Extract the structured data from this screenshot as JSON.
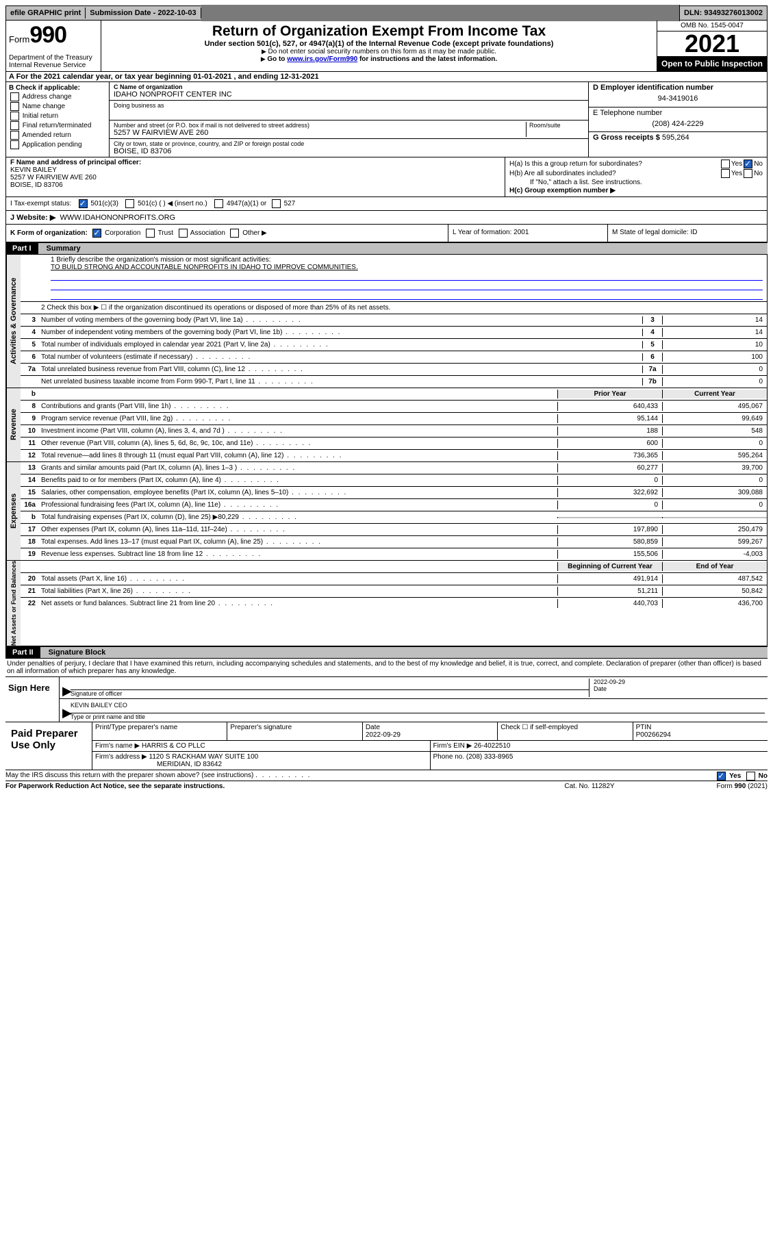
{
  "topbar": {
    "efile": "efile GRAPHIC print",
    "sub_label": "Submission Date - 2022-10-03",
    "dln": "DLN: 93493276013002"
  },
  "header": {
    "form_word": "Form",
    "form_num": "990",
    "dept": "Department of the Treasury",
    "irs": "Internal Revenue Service",
    "title": "Return of Organization Exempt From Income Tax",
    "sub1": "Under section 501(c), 527, or 4947(a)(1) of the Internal Revenue Code (except private foundations)",
    "sub2": "Do not enter social security numbers on this form as it may be made public.",
    "sub3_pre": "Go to ",
    "sub3_link": "www.irs.gov/Form990",
    "sub3_post": " for instructions and the latest information.",
    "omb": "OMB No. 1545-0047",
    "year": "2021",
    "open": "Open to Public Inspection"
  },
  "a": {
    "text": "A For the 2021 calendar year, or tax year beginning 01-01-2021   , and ending 12-31-2021"
  },
  "b": {
    "label": "B Check if applicable:",
    "items": [
      "Address change",
      "Name change",
      "Initial return",
      "Final return/terminated",
      "Amended return",
      "Application pending"
    ]
  },
  "c": {
    "name_lbl": "C Name of organization",
    "name": "IDAHO NONPROFIT CENTER INC",
    "dba_lbl": "Doing business as",
    "street_lbl": "Number and street (or P.O. box if mail is not delivered to street address)",
    "room_lbl": "Room/suite",
    "street": "5257 W FAIRVIEW AVE 260",
    "city_lbl": "City or town, state or province, country, and ZIP or foreign postal code",
    "city": "BOISE, ID  83706"
  },
  "d": {
    "label": "D Employer identification number",
    "val": "94-3419016"
  },
  "e": {
    "label": "E Telephone number",
    "val": "(208) 424-2229"
  },
  "g": {
    "label": "G Gross receipts $",
    "val": "595,264"
  },
  "f": {
    "label": "F  Name and address of principal officer:",
    "name": "KEVIN BAILEY",
    "addr1": "5257 W FAIRVIEW AVE 260",
    "addr2": "BOISE, ID  83706"
  },
  "h": {
    "a_label": "H(a)  Is this a group return for subordinates?",
    "a_yes": "Yes",
    "a_no": "No",
    "b_label": "H(b)  Are all subordinates included?",
    "b_note": "If \"No,\" attach a list. See instructions.",
    "c_label": "H(c)  Group exemption number ▶"
  },
  "i": {
    "label": "I   Tax-exempt status:",
    "opt1": "501(c)(3)",
    "opt2": "501(c) (  ) ◀ (insert no.)",
    "opt3": "4947(a)(1) or",
    "opt4": "527"
  },
  "j": {
    "label": "J   Website: ▶",
    "val": "WWW.IDAHONONPROFITS.ORG"
  },
  "k": {
    "label": "K Form of organization:",
    "opts": [
      "Corporation",
      "Trust",
      "Association",
      "Other ▶"
    ]
  },
  "l": {
    "label": "L Year of formation: 2001"
  },
  "m": {
    "label": "M State of legal domicile: ID"
  },
  "part1": {
    "label": "Part I",
    "name": "Summary",
    "q1": "1  Briefly describe the organization's mission or most significant activities:",
    "mission": "TO BUILD STRONG AND ACCOUNTABLE NONPROFITS IN IDAHO TO IMPROVE COMMUNITIES.",
    "q2": "2   Check this box ▶ ☐  if the organization discontinued its operations or disposed of more than 25% of its net assets."
  },
  "gov_rows": [
    {
      "n": "3",
      "d": "Number of voting members of the governing body (Part VI, line 1a)",
      "c": "3",
      "v": "14"
    },
    {
      "n": "4",
      "d": "Number of independent voting members of the governing body (Part VI, line 1b)",
      "c": "4",
      "v": "14"
    },
    {
      "n": "5",
      "d": "Total number of individuals employed in calendar year 2021 (Part V, line 2a)",
      "c": "5",
      "v": "10"
    },
    {
      "n": "6",
      "d": "Total number of volunteers (estimate if necessary)",
      "c": "6",
      "v": "100"
    },
    {
      "n": "7a",
      "d": "Total unrelated business revenue from Part VIII, column (C), line 12",
      "c": "7a",
      "v": "0"
    },
    {
      "n": "",
      "d": "Net unrelated business taxable income from Form 990-T, Part I, line 11",
      "c": "7b",
      "v": "0"
    }
  ],
  "col_hdr": {
    "b": "b",
    "prior": "Prior Year",
    "current": "Current Year",
    "boy": "Beginning of Current Year",
    "eoy": "End of Year"
  },
  "rev_rows": [
    {
      "n": "8",
      "d": "Contributions and grants (Part VIII, line 1h)",
      "p": "640,433",
      "c": "495,067"
    },
    {
      "n": "9",
      "d": "Program service revenue (Part VIII, line 2g)",
      "p": "95,144",
      "c": "99,649"
    },
    {
      "n": "10",
      "d": "Investment income (Part VIII, column (A), lines 3, 4, and 7d )",
      "p": "188",
      "c": "548"
    },
    {
      "n": "11",
      "d": "Other revenue (Part VIII, column (A), lines 5, 6d, 8c, 9c, 10c, and 11e)",
      "p": "600",
      "c": "0"
    },
    {
      "n": "12",
      "d": "Total revenue—add lines 8 through 11 (must equal Part VIII, column (A), line 12)",
      "p": "736,365",
      "c": "595,264"
    }
  ],
  "exp_rows": [
    {
      "n": "13",
      "d": "Grants and similar amounts paid (Part IX, column (A), lines 1–3 )",
      "p": "60,277",
      "c": "39,700"
    },
    {
      "n": "14",
      "d": "Benefits paid to or for members (Part IX, column (A), line 4)",
      "p": "0",
      "c": "0"
    },
    {
      "n": "15",
      "d": "Salaries, other compensation, employee benefits (Part IX, column (A), lines 5–10)",
      "p": "322,692",
      "c": "309,088"
    },
    {
      "n": "16a",
      "d": "Professional fundraising fees (Part IX, column (A), line 11e)",
      "p": "0",
      "c": "0"
    },
    {
      "n": "b",
      "d": "Total fundraising expenses (Part IX, column (D), line 25) ▶80,229",
      "p": "",
      "c": "",
      "shade": true
    },
    {
      "n": "17",
      "d": "Other expenses (Part IX, column (A), lines 11a–11d, 11f–24e)",
      "p": "197,890",
      "c": "250,479"
    },
    {
      "n": "18",
      "d": "Total expenses. Add lines 13–17 (must equal Part IX, column (A), line 25)",
      "p": "580,859",
      "c": "599,267"
    },
    {
      "n": "19",
      "d": "Revenue less expenses. Subtract line 18 from line 12",
      "p": "155,506",
      "c": "-4,003"
    }
  ],
  "net_rows": [
    {
      "n": "20",
      "d": "Total assets (Part X, line 16)",
      "p": "491,914",
      "c": "487,542"
    },
    {
      "n": "21",
      "d": "Total liabilities (Part X, line 26)",
      "p": "51,211",
      "c": "50,842"
    },
    {
      "n": "22",
      "d": "Net assets or fund balances. Subtract line 21 from line 20",
      "p": "440,703",
      "c": "436,700"
    }
  ],
  "part2": {
    "label": "Part II",
    "name": "Signature Block"
  },
  "penalties": "Under penalties of perjury, I declare that I have examined this return, including accompanying schedules and statements, and to the best of my knowledge and belief, it is true, correct, and complete. Declaration of preparer (other than officer) is based on all information of which preparer has any knowledge.",
  "sign": {
    "label": "Sign Here",
    "sig_lbl": "Signature of officer",
    "date_lbl": "Date",
    "date": "2022-09-29",
    "name": "KEVIN BAILEY CEO",
    "name_lbl": "Type or print name and title"
  },
  "prep": {
    "label": "Paid Preparer Use Only",
    "h1": "Print/Type preparer's name",
    "h2": "Preparer's signature",
    "h3": "Date",
    "date": "2022-09-29",
    "h4": "Check ☐ if self-employed",
    "h5": "PTIN",
    "ptin": "P00266294",
    "firm_lbl": "Firm's name    ▶",
    "firm": "HARRIS & CO PLLC",
    "ein_lbl": "Firm's EIN ▶",
    "ein": "26-4022510",
    "addr_lbl": "Firm's address ▶",
    "addr1": "1120 S RACKHAM WAY SUITE 100",
    "addr2": "MERIDIAN, ID  83642",
    "phone_lbl": "Phone no.",
    "phone": "(208) 333-8965"
  },
  "footer": {
    "q": "May the IRS discuss this return with the preparer shown above? (see instructions)",
    "yes": "Yes",
    "no": "No",
    "pra": "For Paperwork Reduction Act Notice, see the separate instructions.",
    "cat": "Cat. No. 11282Y",
    "form": "Form 990 (2021)"
  }
}
